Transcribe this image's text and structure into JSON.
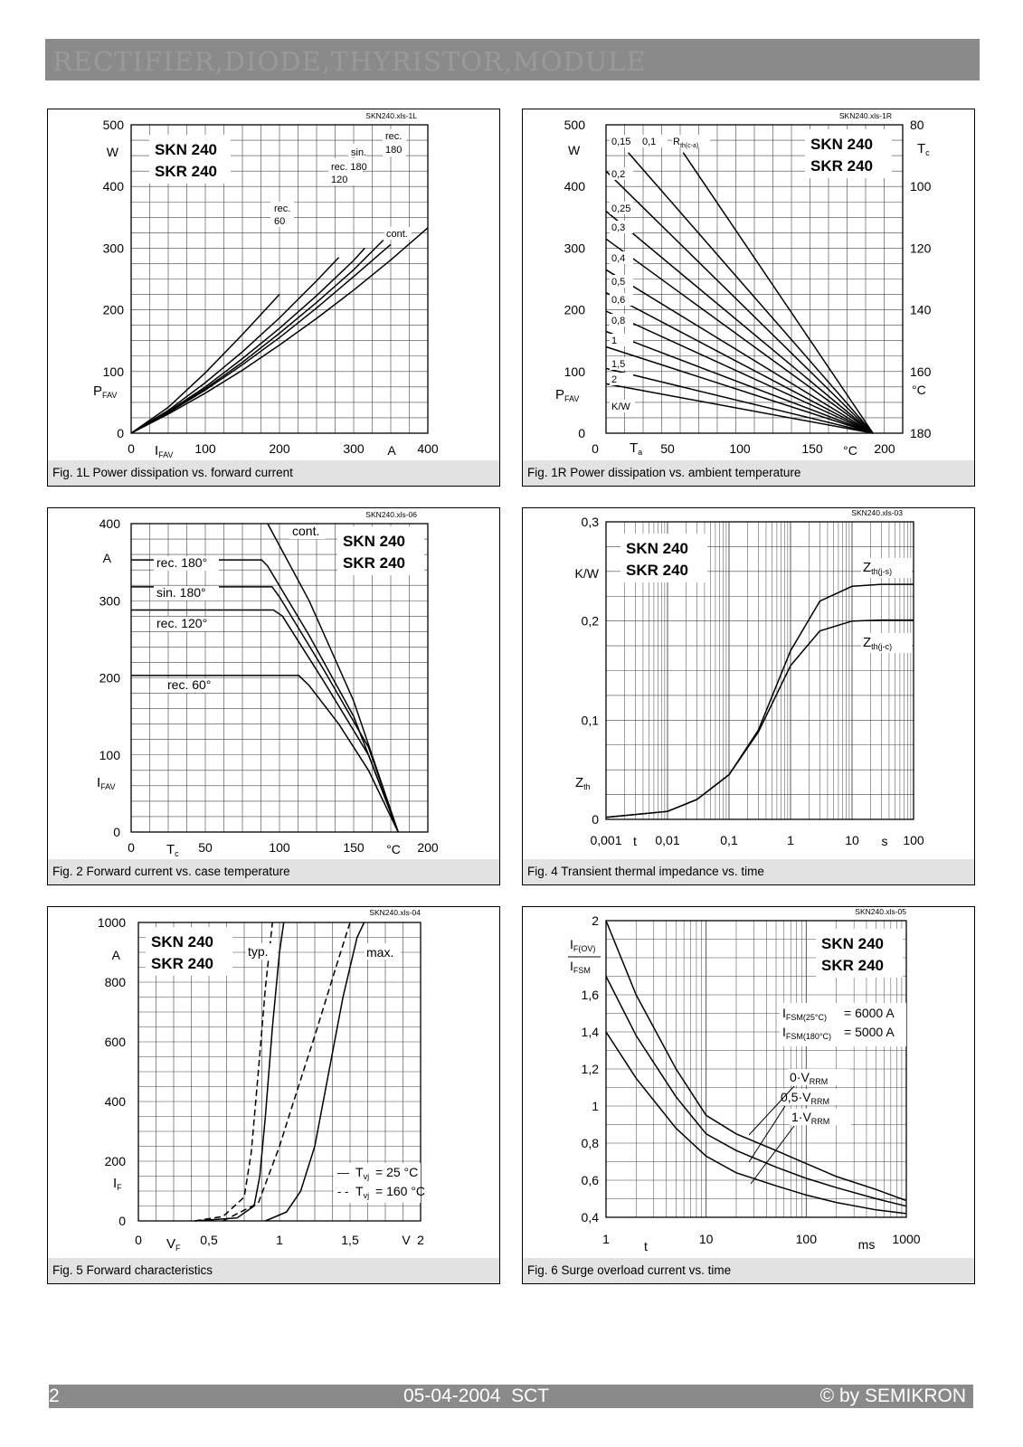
{
  "header": {
    "title": "RECTIFIER,DIODE,THYRISTOR,MODULE"
  },
  "footer": {
    "page": "2",
    "date": "05-04-2004  SCT",
    "copyright": "© by SEMIKRON"
  },
  "charts": [
    {
      "id": "fig1L",
      "type": "line",
      "file": "SKN240.xls-1L",
      "device": [
        "SKN 240",
        "SKR 240"
      ],
      "caption": "Fig. 1L Power dissipation vs. forward current",
      "x_tick_labels": [
        "0",
        "100",
        "200",
        "300",
        "400"
      ],
      "x_unit": "A",
      "xlabel": "I",
      "xlabel_sub": "FAV",
      "y_tick_labels": [
        "0",
        "100",
        "200",
        "300",
        "400",
        "500"
      ],
      "y_unit": "W",
      "ylabel": "P",
      "ylabel_sub": "FAV",
      "xlim": [
        0,
        400
      ],
      "ylim": [
        0,
        500
      ],
      "series": [
        {
          "name": "rec. 60",
          "label_lines": [
            "rec.",
            "60"
          ],
          "x": [
            0,
            50,
            100,
            150,
            200
          ],
          "y": [
            0,
            42,
            98,
            160,
            225
          ]
        },
        {
          "name": "rec. 120",
          "label_lines": [
            "rec.",
            "120"
          ],
          "x": [
            0,
            50,
            100,
            150,
            200,
            250,
            280
          ],
          "y": [
            0,
            37,
            82,
            132,
            187,
            247,
            285
          ]
        },
        {
          "name": "rec. 180",
          "label_lines": [
            "rec.",
            "180"
          ],
          "x": [
            0,
            50,
            100,
            150,
            200,
            250,
            300,
            315
          ],
          "y": [
            0,
            35,
            75,
            121,
            170,
            223,
            280,
            300
          ]
        },
        {
          "name": "sin. 180",
          "label_lines": [
            "sin.",
            "180"
          ],
          "x": [
            0,
            50,
            100,
            150,
            200,
            250,
            300,
            340
          ],
          "y": [
            0,
            34,
            72,
            115,
            162,
            212,
            265,
            313
          ]
        },
        {
          "name": "rec. 180",
          "label_lines": [
            "rec.",
            "180"
          ],
          "x": [
            0,
            50,
            100,
            150,
            200,
            250,
            300,
            350
          ],
          "y": [
            0,
            33,
            70,
            111,
            155,
            203,
            254,
            306
          ]
        },
        {
          "name": "cont.",
          "label_lines": [
            "cont."
          ],
          "x": [
            0,
            50,
            100,
            150,
            200,
            250,
            300,
            350,
            400
          ],
          "y": [
            0,
            31,
            65,
            102,
            143,
            186,
            232,
            281,
            333
          ]
        }
      ]
    },
    {
      "id": "fig1R",
      "type": "line",
      "file": "SKN240.xls-1R",
      "device": [
        "SKN 240",
        "SKR 240"
      ],
      "caption": "Fig. 1R Power dissipation vs. ambient temperature",
      "x_tick_labels": [
        "0",
        "50",
        "100",
        "150",
        "200"
      ],
      "x_unit": "°C",
      "xlabel": "T",
      "xlabel_sub": "a",
      "y_tick_labels": [
        "0",
        "100",
        "200",
        "300",
        "400",
        "500"
      ],
      "y_unit": "W",
      "ylabel": "P",
      "ylabel_sub": "FAV",
      "y2_tick_labels": [
        "180",
        "160",
        "140",
        "120",
        "100",
        "80"
      ],
      "y2_unit": "°C",
      "y2label": "T",
      "y2label_sub": "c",
      "xlim": [
        0,
        200
      ],
      "ylim": [
        0,
        500
      ],
      "rth_label": "R",
      "rth_sub": "th(c-a)",
      "rth_unit": "K/W",
      "series": [
        {
          "name": "0,1",
          "x": [
            52,
            180
          ],
          "y": [
            455,
            0
          ]
        },
        {
          "name": "0,15",
          "x": [
            15,
            180
          ],
          "y": [
            455,
            0
          ]
        },
        {
          "name": "0,2",
          "x": [
            0,
            180
          ],
          "y": [
            425,
            0
          ]
        },
        {
          "name": "0,25",
          "x": [
            0,
            180
          ],
          "y": [
            360,
            0
          ]
        },
        {
          "name": "0,3",
          "x": [
            0,
            180
          ],
          "y": [
            315,
            0
          ]
        },
        {
          "name": "0,4",
          "x": [
            0,
            180
          ],
          "y": [
            265,
            0
          ]
        },
        {
          "name": "0,5",
          "x": [
            0,
            180
          ],
          "y": [
            228,
            0
          ]
        },
        {
          "name": "0,6",
          "x": [
            0,
            180
          ],
          "y": [
            198,
            0
          ]
        },
        {
          "name": "0,8",
          "x": [
            0,
            180
          ],
          "y": [
            165,
            0
          ]
        },
        {
          "name": "1",
          "x": [
            0,
            180
          ],
          "y": [
            140,
            0
          ]
        },
        {
          "name": "1,5",
          "x": [
            0,
            180
          ],
          "y": [
            105,
            0
          ]
        },
        {
          "name": "2",
          "x": [
            0,
            180
          ],
          "y": [
            80,
            0
          ]
        }
      ]
    },
    {
      "id": "fig2",
      "type": "line",
      "file": "SKN240.xls-06",
      "device": [
        "SKN 240",
        "SKR 240"
      ],
      "caption": "Fig. 2 Forward current vs. case temperature",
      "x_tick_labels": [
        "0",
        "50",
        "100",
        "150",
        "200"
      ],
      "x_unit": "°C",
      "xlabel": "T",
      "xlabel_sub": "c",
      "y_tick_labels": [
        "0",
        "100",
        "200",
        "300",
        "400"
      ],
      "y_unit": "A",
      "ylabel": "I",
      "ylabel_sub": "FAV",
      "xlim": [
        0,
        200
      ],
      "ylim": [
        0,
        400
      ],
      "series": [
        {
          "name": "cont.",
          "x": [
            92,
            120,
            150,
            180
          ],
          "y": [
            400,
            300,
            170,
            0
          ]
        },
        {
          "name": "rec. 180°",
          "x": [
            0,
            88,
            92,
            120,
            150,
            180
          ],
          "y": [
            353,
            353,
            345,
            255,
            150,
            0
          ]
        },
        {
          "name": "sin. 180°",
          "x": [
            0,
            95,
            100,
            130,
            160,
            180
          ],
          "y": [
            318,
            318,
            305,
            210,
            110,
            0
          ]
        },
        {
          "name": "rec. 120°",
          "x": [
            0,
            96,
            102,
            130,
            160,
            180
          ],
          "y": [
            288,
            288,
            280,
            195,
            100,
            0
          ]
        },
        {
          "name": "rec. 60°",
          "x": [
            0,
            113,
            120,
            140,
            160,
            180
          ],
          "y": [
            203,
            203,
            190,
            140,
            80,
            0
          ]
        }
      ]
    },
    {
      "id": "fig4",
      "type": "line",
      "file": "SKN240.xls-03",
      "device": [
        "SKN 240",
        "SKR 240"
      ],
      "caption": "Fig. 4 Transient thermal impedance vs. time",
      "x_tick_labels": [
        "0,001",
        "0,01",
        "0,1",
        "1",
        "10",
        "100"
      ],
      "x_unit": "s",
      "xlabel": "t",
      "x_log": true,
      "y_tick_labels": [
        "0",
        "0,1",
        "0,2",
        "0,3"
      ],
      "y_unit": "K/W",
      "ylabel": "Z",
      "ylabel_sub": "th",
      "xlim": [
        0.001,
        100
      ],
      "ylim": [
        0,
        0.3
      ],
      "series": [
        {
          "name": "Zth(j-s)",
          "label": "Z",
          "label_sub": "th(j-s)",
          "x": [
            0.001,
            0.01,
            0.03,
            0.1,
            0.3,
            1,
            3,
            10,
            30,
            100
          ],
          "y": [
            0.002,
            0.008,
            0.02,
            0.045,
            0.09,
            0.17,
            0.22,
            0.235,
            0.237,
            0.237
          ]
        },
        {
          "name": "Zth(j-c)",
          "label": "Z",
          "label_sub": "th(j-c)",
          "x": [
            0.001,
            0.01,
            0.03,
            0.1,
            0.3,
            1,
            3,
            10,
            30,
            100
          ],
          "y": [
            0.002,
            0.008,
            0.02,
            0.045,
            0.088,
            0.155,
            0.19,
            0.2,
            0.201,
            0.201
          ]
        }
      ]
    },
    {
      "id": "fig5",
      "type": "line",
      "file": "SKN240.xls-04",
      "device": [
        "SKN 240",
        "SKR 240"
      ],
      "caption": "Fig. 5 Forward characteristics",
      "x_tick_labels": [
        "0",
        "0,5",
        "1",
        "1,5",
        "2"
      ],
      "x_unit": "V",
      "xlabel": "V",
      "xlabel_sub": "F",
      "y_tick_labels": [
        "0",
        "200",
        "400",
        "600",
        "800",
        "1000"
      ],
      "y_unit": "A",
      "ylabel": "I",
      "ylabel_sub": "F",
      "xlim": [
        0,
        2
      ],
      "ylim": [
        0,
        1000
      ],
      "series_labels": [
        "typ.",
        "max."
      ],
      "legend": [
        {
          "mark": "—",
          "label": "T",
          "sub": "vj",
          "value": "=   25 °C"
        },
        {
          "mark": "- -",
          "label": "T",
          "sub": "vj",
          "value": "= 160 °C"
        }
      ],
      "series": [
        {
          "name": "typ. 25 °C",
          "style": "solid",
          "x": [
            0.4,
            0.7,
            0.82,
            0.86,
            0.9,
            0.95,
            1.0,
            1.03
          ],
          "y": [
            0,
            10,
            50,
            150,
            350,
            650,
            900,
            1000
          ]
        },
        {
          "name": "typ. 160 °C",
          "style": "dashed",
          "x": [
            0.4,
            0.6,
            0.75,
            0.8,
            0.85,
            0.9,
            0.95
          ],
          "y": [
            0,
            15,
            80,
            230,
            500,
            780,
            1000
          ]
        },
        {
          "name": "max. 25 °C",
          "style": "solid",
          "x": [
            0.9,
            1.05,
            1.15,
            1.25,
            1.35,
            1.45,
            1.55,
            1.6
          ],
          "y": [
            0,
            30,
            100,
            250,
            500,
            750,
            950,
            1000
          ]
        },
        {
          "name": "max. 160 °C",
          "style": "dashed",
          "x": [
            0.6,
            0.85,
            1.0,
            1.1,
            1.25,
            1.4,
            1.5
          ],
          "y": [
            0,
            60,
            250,
            400,
            620,
            850,
            1000
          ]
        }
      ]
    },
    {
      "id": "fig6",
      "type": "line",
      "file": "SKN240.xls-05",
      "device": [
        "SKN 240",
        "SKR 240"
      ],
      "caption": "Fig. 6 Surge overload current vs. time",
      "x_tick_labels": [
        "1",
        "10",
        "100",
        "1000"
      ],
      "x_unit": "ms",
      "xlabel": "t",
      "x_log": true,
      "y_tick_labels": [
        "0,4",
        "0,6",
        "0,8",
        "1",
        "1,2",
        "1,4",
        "1,6",
        "2"
      ],
      "ylabel_num": "I",
      "ylabel_num_sub": "F(OV)",
      "ylabel_den": "I",
      "ylabel_den_sub": "FSM",
      "xlim": [
        1,
        1000
      ],
      "ylim": [
        0.4,
        2.0
      ],
      "notes": [
        {
          "label": "I",
          "sub": "FSM(25°C)",
          "value": "= 6000 A"
        },
        {
          "label": "I",
          "sub": "FSM(180°C)",
          "value": "= 5000 A"
        }
      ],
      "series": [
        {
          "name": "0·VRRM",
          "label": "0·V",
          "label_sub": "RRM",
          "x": [
            1,
            2,
            5,
            10,
            20,
            50,
            100,
            200,
            500,
            1000
          ],
          "y": [
            2.0,
            1.6,
            1.2,
            0.95,
            0.85,
            0.76,
            0.69,
            0.62,
            0.55,
            0.49
          ]
        },
        {
          "name": "0,5·VRRM",
          "label": "0,5·V",
          "label_sub": "RRM",
          "x": [
            1,
            2,
            5,
            10,
            20,
            50,
            100,
            200,
            500,
            1000
          ],
          "y": [
            1.7,
            1.38,
            1.05,
            0.85,
            0.76,
            0.67,
            0.61,
            0.56,
            0.5,
            0.46
          ]
        },
        {
          "name": "1·VRRM",
          "label": "1·V",
          "label_sub": "RRM",
          "x": [
            1,
            2,
            5,
            10,
            20,
            50,
            100,
            200,
            500,
            1000
          ],
          "y": [
            1.4,
            1.15,
            0.88,
            0.73,
            0.64,
            0.57,
            0.52,
            0.48,
            0.44,
            0.42
          ]
        }
      ]
    }
  ]
}
